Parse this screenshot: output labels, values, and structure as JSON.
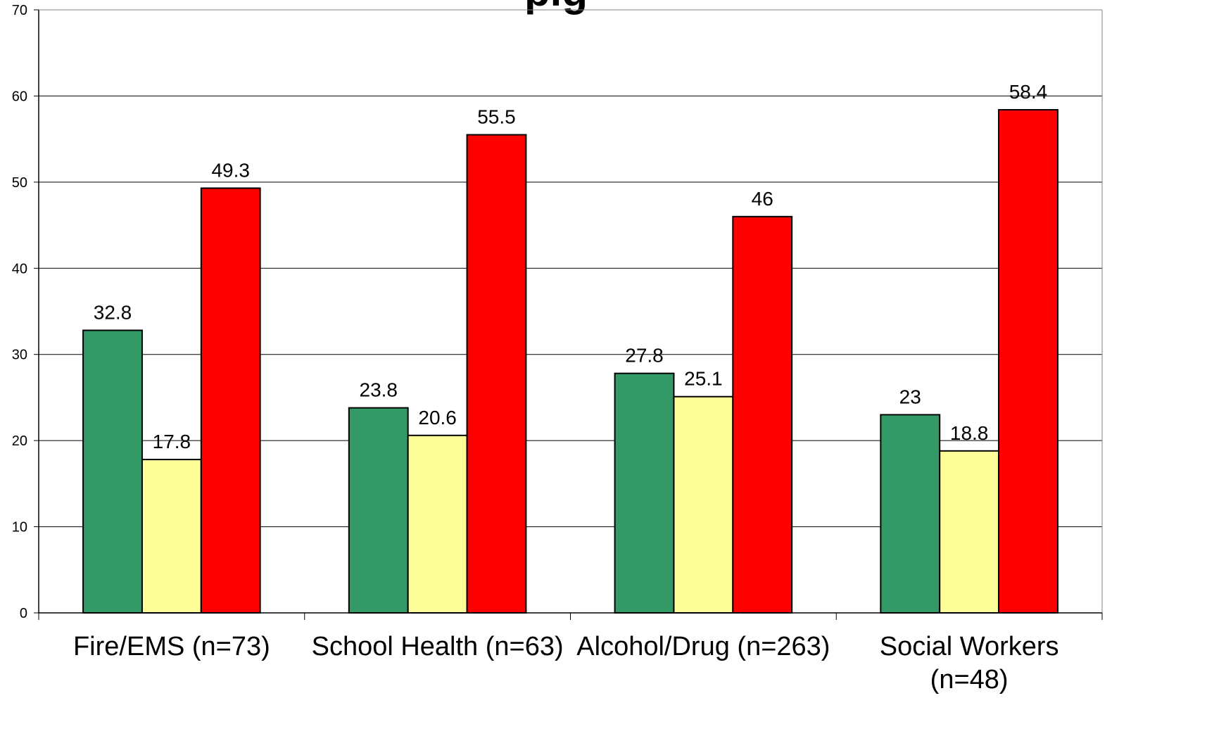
{
  "chart_data": {
    "type": "bar",
    "title": "",
    "title_visible_fragment": "pig",
    "xlabel": "",
    "ylabel": "",
    "ylim": [
      0,
      70
    ],
    "yticks": [
      0,
      10,
      20,
      30,
      40,
      50,
      60,
      70
    ],
    "grid": true,
    "legend": "none",
    "categories": [
      [
        "Fire/EMS (n=73)"
      ],
      [
        "School Health (n=63)"
      ],
      [
        "Alcohol/Drug (n=263)"
      ],
      [
        "Social Workers",
        "(n=48)"
      ]
    ],
    "series": [
      {
        "color": "#339966",
        "values": [
          32.8,
          23.8,
          27.8,
          23
        ]
      },
      {
        "color": "#FFFF99",
        "values": [
          17.8,
          20.6,
          25.1,
          18.8
        ]
      },
      {
        "color": "#FF0000",
        "values": [
          49.3,
          55.5,
          46,
          58.4
        ]
      }
    ]
  }
}
